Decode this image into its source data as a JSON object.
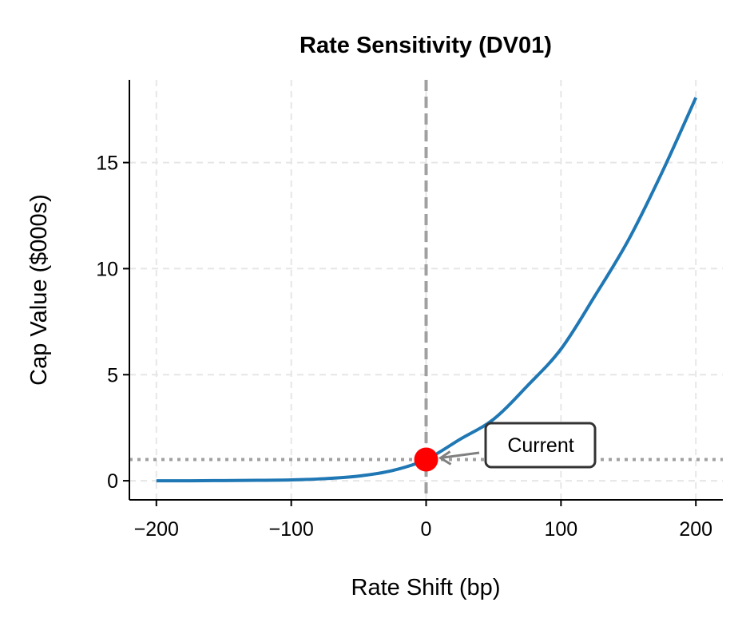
{
  "chart_data": {
    "type": "line",
    "title": "Rate Sensitivity (DV01)",
    "xlabel": "Rate Shift (bp)",
    "ylabel": "Cap Value ($000s)",
    "xlim": [
      -220,
      220
    ],
    "ylim": [
      -0.9,
      18.9
    ],
    "xticks": [
      -200,
      -100,
      0,
      100,
      200
    ],
    "xtick_labels": [
      "−200",
      "−100",
      "0",
      "100",
      "200"
    ],
    "yticks": [
      0,
      5,
      10,
      15
    ],
    "ytick_labels": [
      "0",
      "5",
      "10",
      "15"
    ],
    "grid": true,
    "series": [
      {
        "color": "#1f77b4",
        "x": [
          -200,
          -175,
          -150,
          -125,
          -100,
          -75,
          -50,
          -25,
          0,
          25,
          50,
          75,
          100,
          125,
          150,
          175,
          200
        ],
        "y": [
          0.0,
          0.0,
          0.01,
          0.02,
          0.04,
          0.1,
          0.22,
          0.48,
          1.0,
          1.95,
          2.9,
          4.47,
          6.21,
          8.7,
          11.35,
          14.55,
          18.06
        ]
      }
    ],
    "current_point": {
      "x": 0,
      "y": 1.0,
      "color": "#ff0000"
    },
    "reference_lines": {
      "vertical_x": 0,
      "horizontal_y": 1.0,
      "color": "#a0a0a0"
    },
    "annotation": {
      "text": "Current",
      "x": 0,
      "y": 1.0
    }
  }
}
